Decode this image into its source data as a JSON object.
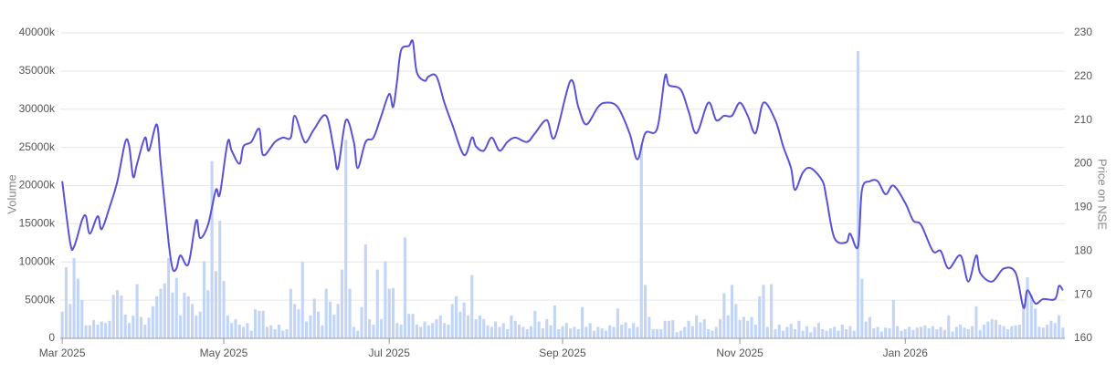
{
  "chart_data": {
    "type": "combo",
    "y_label": "Volume",
    "y2_label": "Price on NSE",
    "grid": true,
    "xlim": [
      -0.5,
      254.5
    ],
    "xticks": [
      {
        "value": 0,
        "label": "Mar 2025"
      },
      {
        "value": 41,
        "label": "May 2025"
      },
      {
        "value": 83,
        "label": "Jul 2025"
      },
      {
        "value": 127,
        "label": "Sep 2025"
      },
      {
        "value": 172,
        "label": "Nov 2025"
      },
      {
        "value": 214,
        "label": "Jan 2026"
      }
    ],
    "ylim": [
      0,
      40000
    ],
    "yticks": [
      0,
      {
        "value": 5000,
        "label": "5000k"
      },
      {
        "value": 10000,
        "label": "10000k"
      },
      {
        "value": 15000,
        "label": "15000k"
      },
      {
        "value": 20000,
        "label": "20000k"
      },
      {
        "value": 25000,
        "label": "25000k"
      },
      {
        "value": 30000,
        "label": "30000k"
      },
      {
        "value": 35000,
        "label": "35000k"
      },
      {
        "value": 40000,
        "label": "40000k"
      }
    ],
    "y2lim": [
      160,
      230
    ],
    "y2ticks": [
      160,
      170,
      180,
      190,
      200,
      210,
      220,
      230
    ],
    "series": [
      {
        "type": "bar",
        "color": "#c2d5f7",
        "values": [
          3500,
          9300,
          4500,
          10500,
          7800,
          5000,
          1700,
          1700,
          2400,
          1800,
          2200,
          2000,
          2300,
          5700,
          6300,
          5600,
          3100,
          2000,
          3000,
          7100,
          2800,
          1800,
          2700,
          4200,
          5500,
          6500,
          7200,
          10500,
          6000,
          7900,
          3000,
          6000,
          5500,
          4500,
          3000,
          3500,
          10100,
          6300,
          23200,
          8800,
          15400,
          7500,
          3000,
          2000,
          2500,
          1800,
          1500,
          2000,
          1000,
          3800,
          3600,
          3600,
          1500,
          1700,
          1200,
          1800,
          1000,
          1200,
          6500,
          4500,
          3800,
          10000,
          2200,
          3000,
          5200,
          3500,
          1700,
          6500,
          4800,
          3100,
          4500,
          9000,
          26000,
          6500,
          1500,
          1000,
          4100,
          12300,
          2500,
          1800,
          9000,
          2500,
          10100,
          6500,
          6600,
          2000,
          1800,
          13200,
          3200,
          3200,
          1800,
          1500,
          2200,
          1700,
          2000,
          2500,
          3000,
          2000,
          1800,
          4500,
          5500,
          3500,
          4700,
          3000,
          8300,
          2500,
          3000,
          2500,
          1700,
          1500,
          2200,
          1500,
          2000,
          1200,
          3000,
          2300,
          1800,
          1500,
          1200,
          1600,
          3600,
          2200,
          1300,
          2500,
          1700,
          4300,
          1200,
          1600,
          2000,
          1300,
          1500,
          1200,
          4100,
          1500,
          2000,
          1000,
          1500,
          1300,
          1000,
          1700,
          1500,
          3900,
          1800,
          2100,
          1300,
          2000,
          1500,
          25400,
          7000,
          2800,
          1200,
          1200,
          1200,
          2300,
          2300,
          2400,
          800,
          1000,
          1500,
          2300,
          1600,
          3000,
          2100,
          2500,
          1200,
          1000,
          1500,
          2500,
          5900,
          3000,
          7000,
          4500,
          2400,
          2800,
          2300,
          2800,
          1800,
          5500,
          7000,
          1500,
          7100,
          1200,
          1800,
          1000,
          1500,
          1900,
          1200,
          2300,
          1000,
          1600,
          800,
          1500,
          2000,
          1200,
          1000,
          1300,
          1500,
          1000,
          1800,
          1200,
          1600,
          1000,
          37600,
          7800,
          2200,
          2800,
          1300,
          1500,
          900,
          1400,
          1300,
          5000,
          1600,
          1000,
          1200,
          1500,
          1100,
          1400,
          1500,
          1700,
          1300,
          1600,
          1200,
          1500,
          1100,
          3000,
          900,
          1500,
          1800,
          1400,
          1200,
          1600,
          4200,
          1100,
          1800,
          2200,
          2500,
          2400,
          1800,
          1600,
          1200,
          1600,
          1700,
          1800,
          4500,
          8000,
          5700,
          3900,
          1500,
          1400,
          1800,
          2300,
          2000,
          3000,
          1400
        ]
      },
      {
        "type": "line",
        "axis": "y2",
        "color": "#5b51d6",
        "x": [
          0,
          2,
          3,
          5,
          6,
          7,
          9,
          10,
          12,
          14,
          16,
          17,
          18,
          19,
          21,
          22,
          24,
          25,
          27,
          28,
          29,
          30,
          32,
          34,
          35,
          37,
          39,
          40,
          42,
          43,
          45,
          46,
          48,
          50,
          51,
          54,
          56,
          58,
          59,
          61,
          62,
          64,
          67,
          69,
          70,
          72,
          74,
          75,
          77,
          79,
          81,
          83,
          84,
          85,
          86,
          88,
          89,
          90,
          92,
          93,
          95,
          97,
          99,
          102,
          104,
          105,
          107,
          109,
          111,
          113,
          115,
          118,
          120,
          123,
          125,
          129,
          131,
          133,
          136,
          138,
          141,
          144,
          146,
          148,
          151,
          153,
          154,
          157,
          159,
          161,
          164,
          166,
          168,
          170,
          172,
          174,
          176,
          178,
          181,
          183,
          185,
          186,
          188,
          190,
          193,
          194,
          196,
          199,
          200,
          202,
          203,
          205,
          207,
          209,
          211,
          214,
          216,
          218,
          221,
          223,
          225,
          228,
          230,
          232,
          233,
          236,
          239,
          242,
          244,
          245,
          247,
          249,
          252,
          253,
          254
        ],
        "values": [
          196,
          182,
          181,
          187,
          188,
          184,
          188,
          185,
          190,
          196,
          205,
          204,
          197,
          200,
          206,
          203,
          209,
          200,
          182,
          176,
          176,
          179,
          177,
          187,
          183,
          186,
          194,
          193,
          205,
          203,
          200,
          204,
          205,
          208,
          202,
          205,
          206,
          206,
          211,
          206,
          205,
          208,
          211,
          203,
          199,
          210,
          205,
          199,
          205,
          206,
          211,
          216,
          213,
          219,
          226,
          227,
          228,
          221,
          219,
          220,
          220,
          214,
          209,
          202,
          206,
          204,
          203,
          206,
          203,
          205,
          206,
          205,
          207,
          210,
          206,
          219,
          213,
          209,
          213,
          214,
          213,
          207,
          201,
          207,
          208,
          220,
          218,
          217,
          212,
          207,
          214,
          210,
          211,
          211,
          214,
          211,
          207,
          214,
          210,
          204,
          199,
          194,
          198,
          199,
          196,
          192,
          183,
          182,
          184,
          181,
          194,
          196,
          196,
          193,
          195,
          191,
          187,
          186,
          180,
          180,
          176,
          179,
          173,
          179,
          175,
          173,
          176,
          175,
          167,
          171,
          168,
          169,
          169,
          172,
          171
        ]
      }
    ]
  }
}
